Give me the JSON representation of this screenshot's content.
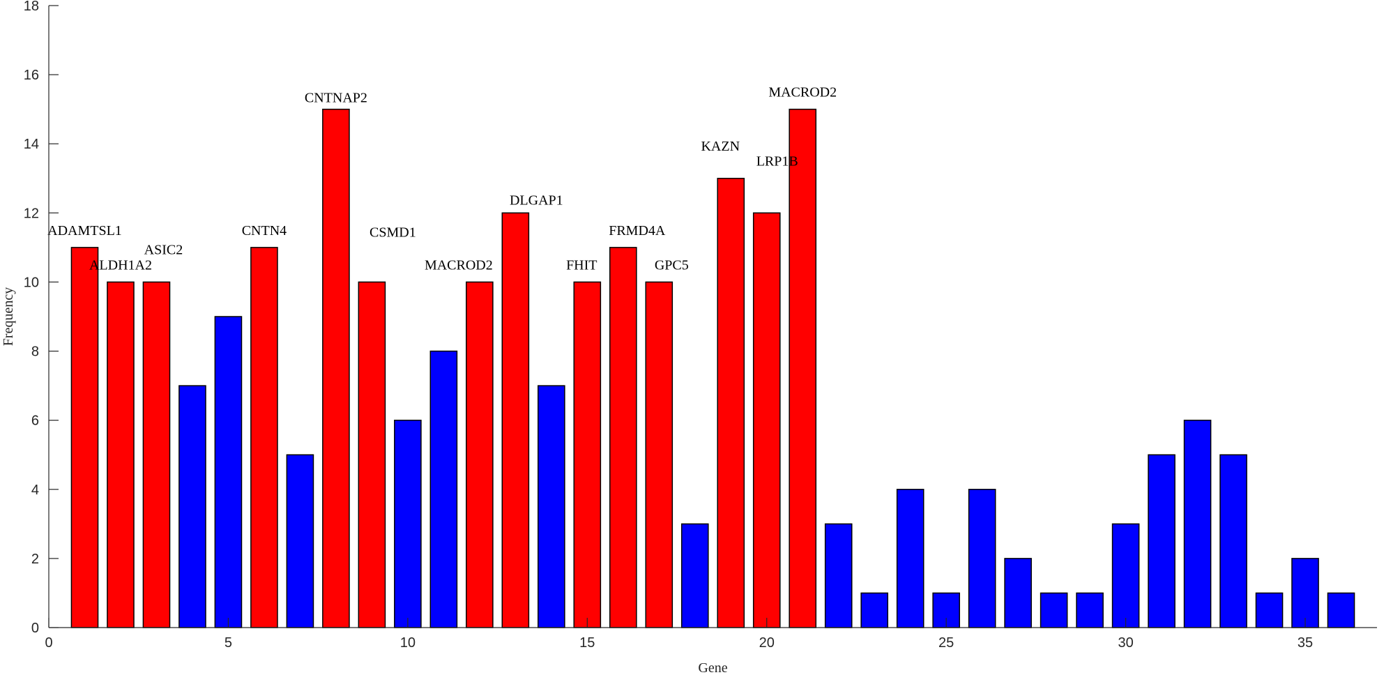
{
  "chart_data": {
    "type": "bar",
    "title": "",
    "xlabel": "Gene",
    "ylabel": "Frequency",
    "xlim": [
      0,
      37
    ],
    "ylim": [
      0,
      18
    ],
    "xticks": [
      0,
      5,
      10,
      15,
      20,
      25,
      30,
      35
    ],
    "yticks": [
      0,
      2,
      4,
      6,
      8,
      10,
      12,
      14,
      16,
      18
    ],
    "grid": false,
    "x": [
      1,
      2,
      3,
      4,
      5,
      6,
      7,
      8,
      9,
      10,
      11,
      12,
      13,
      14,
      15,
      16,
      17,
      18,
      19,
      20,
      21,
      22,
      23,
      24,
      25,
      26,
      27,
      28,
      29,
      30,
      31,
      32,
      33,
      34,
      35,
      36
    ],
    "values": [
      11,
      10,
      10,
      7,
      9,
      11,
      5,
      15,
      10,
      6,
      8,
      10,
      12,
      7,
      10,
      11,
      10,
      3,
      13,
      12,
      15,
      3,
      1,
      4,
      1,
      4,
      2,
      1,
      1,
      3,
      5,
      6,
      5,
      1,
      2,
      1
    ],
    "highlighted": [
      1,
      1,
      1,
      0,
      0,
      1,
      0,
      1,
      1,
      0,
      0,
      1,
      1,
      0,
      1,
      1,
      1,
      0,
      1,
      1,
      1,
      0,
      0,
      0,
      0,
      0,
      0,
      0,
      0,
      0,
      0,
      0,
      0,
      0,
      0,
      0
    ],
    "colors": {
      "highlight": "#ff0000",
      "normal": "#0000ff",
      "axis": "#262626",
      "edge": "#000000"
    },
    "bar_labels": [
      {
        "x": 1,
        "text": "ADAMTSL1"
      },
      {
        "x": 2,
        "text": "ALDH1A2"
      },
      {
        "x": 3,
        "text": "ASIC2"
      },
      {
        "x": 6,
        "text": "CNTN4"
      },
      {
        "x": 8,
        "text": "CNTNAP2"
      },
      {
        "x": 9,
        "text": "CSMD1"
      },
      {
        "x": 12,
        "text": "MACROD2"
      },
      {
        "x": 13,
        "text": "DLGAP1"
      },
      {
        "x": 15,
        "text": "FHIT"
      },
      {
        "x": 16,
        "text": "FRMD4A"
      },
      {
        "x": 17,
        "text": "GPC5"
      },
      {
        "x": 19,
        "text": "KAZN"
      },
      {
        "x": 20,
        "text": "LRP1B"
      },
      {
        "x": 21,
        "text": "MACROD2"
      }
    ]
  }
}
